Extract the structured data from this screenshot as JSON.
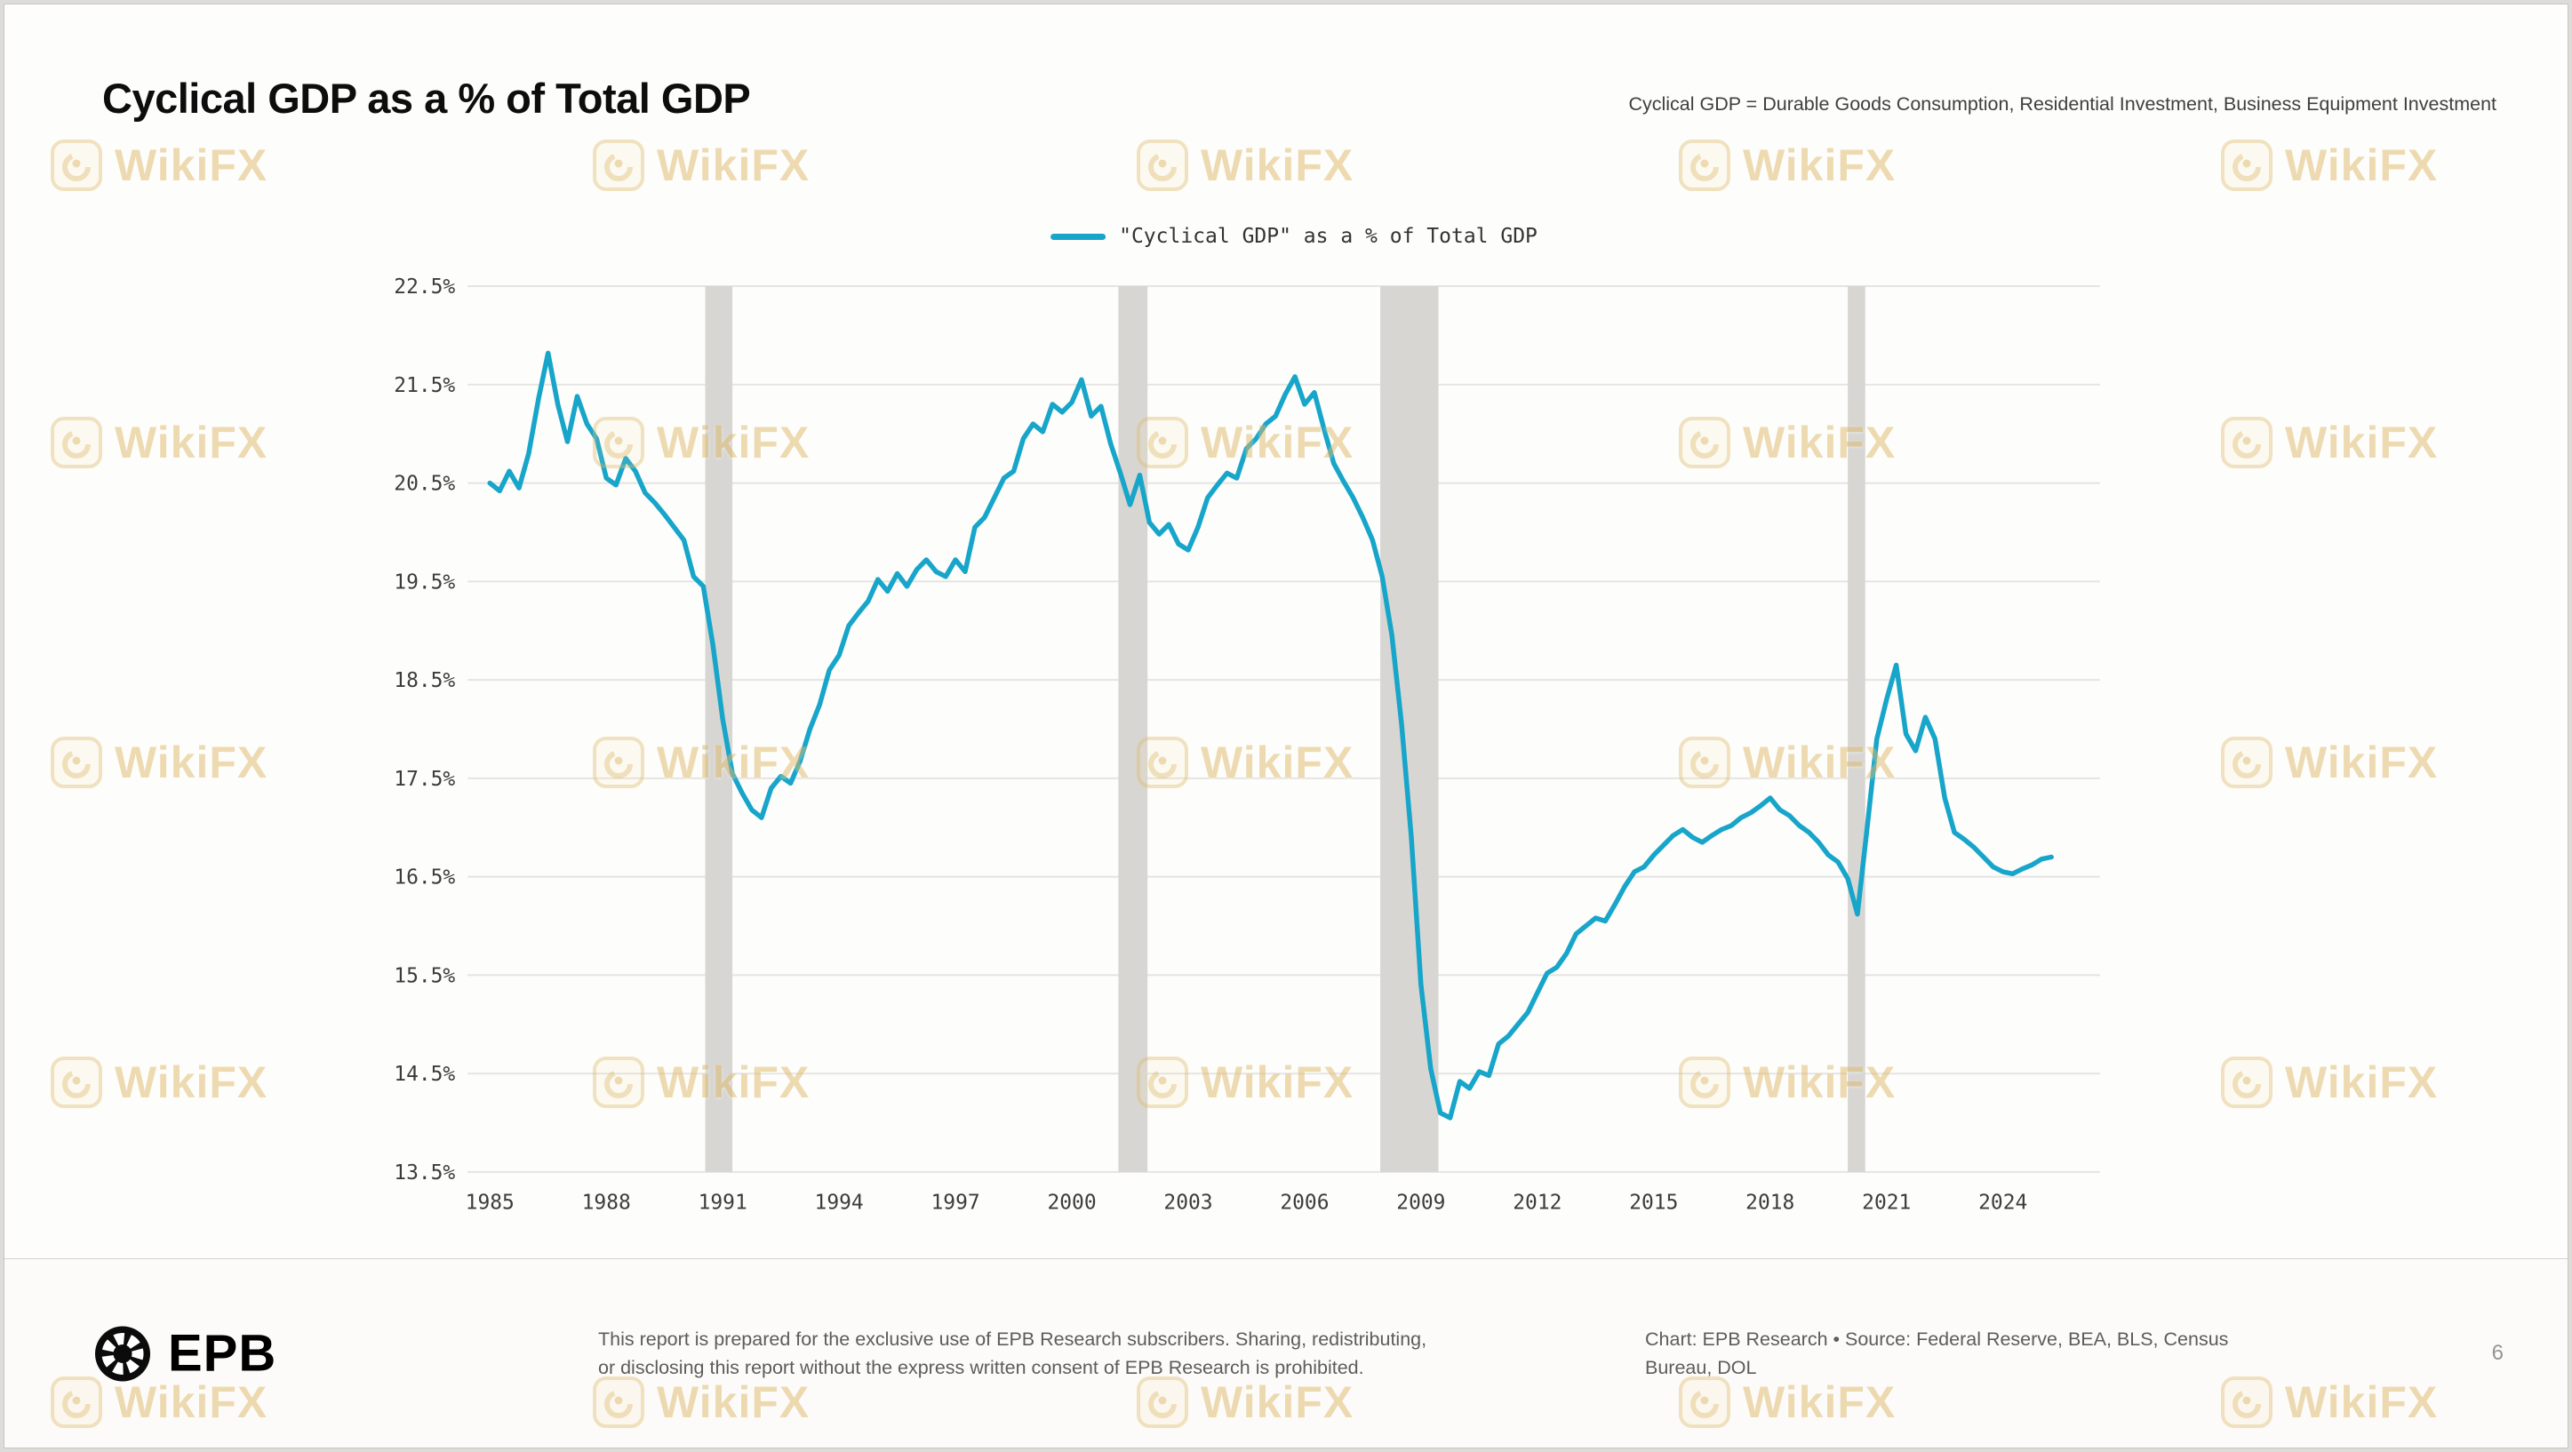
{
  "page": {
    "title": "Cyclical GDP as a % of Total GDP",
    "subtitle_note": "Cyclical GDP = Durable Goods Consumption, Residential Investment, Business Equipment Investment",
    "page_number": "6"
  },
  "legend": {
    "label": "\"Cyclical GDP\" as a % of Total GDP"
  },
  "footer": {
    "brand": "EPB",
    "disclaimer_line1": "This report is prepared for the exclusive use of EPB Research subscribers. Sharing, redistributing,",
    "disclaimer_line2": "or disclosing this report without the express written consent of EPB Research is prohibited.",
    "credits_line1": "Chart: EPB Research  •  Source: Federal Reserve, BEA, BLS, Census",
    "credits_line2": "Bureau, DOL"
  },
  "watermark": {
    "text": "WikiFX",
    "color": "#dfb968"
  },
  "chart_data": {
    "type": "line",
    "title": "Cyclical GDP as a % of Total GDP",
    "xlabel": "",
    "ylabel": "",
    "xlim": [
      1984.7,
      2026.5
    ],
    "ylim": [
      13.5,
      22.5
    ],
    "grid": "horizontal",
    "grid_color": "#e6e4e1",
    "band_color": "#d8d6d3",
    "legend_position": "top-center",
    "yticks": [
      22.5,
      21.5,
      20.5,
      19.5,
      18.5,
      17.5,
      16.5,
      15.5,
      14.5,
      13.5
    ],
    "ytick_labels": [
      "22.5%",
      "21.5%",
      "20.5%",
      "19.5%",
      "18.5%",
      "17.5%",
      "16.5%",
      "15.5%",
      "14.5%",
      "13.5%"
    ],
    "xticks": [
      1985,
      1988,
      1991,
      1994,
      1997,
      2000,
      2003,
      2006,
      2009,
      2012,
      2015,
      2018,
      2021,
      2024
    ],
    "xtick_labels": [
      "1985",
      "1988",
      "1991",
      "1994",
      "1997",
      "2000",
      "2003",
      "2006",
      "2009",
      "2012",
      "2015",
      "2018",
      "2021",
      "2024"
    ],
    "recession_bands": [
      [
        1990.55,
        1991.25
      ],
      [
        2001.2,
        2001.95
      ],
      [
        2007.95,
        2009.45
      ],
      [
        2020.0,
        2020.45
      ]
    ],
    "series": [
      {
        "name": "\"Cyclical GDP\" as a % of Total GDP",
        "color": "#17a5c9",
        "points": [
          [
            1985,
            20.5
          ],
          [
            1985.25,
            20.42
          ],
          [
            1985.5,
            20.62
          ],
          [
            1985.75,
            20.45
          ],
          [
            1986,
            20.8
          ],
          [
            1986.25,
            21.35
          ],
          [
            1986.5,
            21.82
          ],
          [
            1986.75,
            21.3
          ],
          [
            1987,
            20.92
          ],
          [
            1987.25,
            21.38
          ],
          [
            1987.5,
            21.1
          ],
          [
            1987.75,
            20.95
          ],
          [
            1988,
            20.55
          ],
          [
            1988.25,
            20.48
          ],
          [
            1988.5,
            20.75
          ],
          [
            1988.75,
            20.62
          ],
          [
            1989,
            20.4
          ],
          [
            1989.25,
            20.3
          ],
          [
            1989.5,
            20.18
          ],
          [
            1989.75,
            20.05
          ],
          [
            1990,
            19.92
          ],
          [
            1990.25,
            19.55
          ],
          [
            1990.5,
            19.45
          ],
          [
            1990.75,
            18.85
          ],
          [
            1991,
            18.1
          ],
          [
            1991.25,
            17.55
          ],
          [
            1991.5,
            17.35
          ],
          [
            1991.75,
            17.18
          ],
          [
            1992,
            17.1
          ],
          [
            1992.25,
            17.4
          ],
          [
            1992.5,
            17.52
          ],
          [
            1992.75,
            17.45
          ],
          [
            1993,
            17.68
          ],
          [
            1993.25,
            18.0
          ],
          [
            1993.5,
            18.25
          ],
          [
            1993.75,
            18.6
          ],
          [
            1994,
            18.75
          ],
          [
            1994.25,
            19.05
          ],
          [
            1994.5,
            19.18
          ],
          [
            1994.75,
            19.3
          ],
          [
            1995,
            19.52
          ],
          [
            1995.25,
            19.4
          ],
          [
            1995.5,
            19.58
          ],
          [
            1995.75,
            19.45
          ],
          [
            1996,
            19.62
          ],
          [
            1996.25,
            19.72
          ],
          [
            1996.5,
            19.6
          ],
          [
            1996.75,
            19.55
          ],
          [
            1997,
            19.72
          ],
          [
            1997.25,
            19.6
          ],
          [
            1997.5,
            20.05
          ],
          [
            1997.75,
            20.15
          ],
          [
            1998,
            20.35
          ],
          [
            1998.25,
            20.55
          ],
          [
            1998.5,
            20.62
          ],
          [
            1998.75,
            20.95
          ],
          [
            1999,
            21.1
          ],
          [
            1999.25,
            21.02
          ],
          [
            1999.5,
            21.3
          ],
          [
            1999.75,
            21.22
          ],
          [
            2000,
            21.32
          ],
          [
            2000.25,
            21.55
          ],
          [
            2000.5,
            21.18
          ],
          [
            2000.75,
            21.28
          ],
          [
            2001,
            20.9
          ],
          [
            2001.25,
            20.6
          ],
          [
            2001.5,
            20.28
          ],
          [
            2001.75,
            20.58
          ],
          [
            2002,
            20.1
          ],
          [
            2002.25,
            19.98
          ],
          [
            2002.5,
            20.08
          ],
          [
            2002.75,
            19.88
          ],
          [
            2003,
            19.82
          ],
          [
            2003.25,
            20.05
          ],
          [
            2003.5,
            20.35
          ],
          [
            2003.75,
            20.48
          ],
          [
            2004,
            20.6
          ],
          [
            2004.25,
            20.55
          ],
          [
            2004.5,
            20.85
          ],
          [
            2004.75,
            20.95
          ],
          [
            2005,
            21.1
          ],
          [
            2005.25,
            21.18
          ],
          [
            2005.5,
            21.4
          ],
          [
            2005.75,
            21.58
          ],
          [
            2006,
            21.3
          ],
          [
            2006.25,
            21.42
          ],
          [
            2006.5,
            21.05
          ],
          [
            2006.75,
            20.7
          ],
          [
            2007,
            20.52
          ],
          [
            2007.25,
            20.35
          ],
          [
            2007.5,
            20.15
          ],
          [
            2007.75,
            19.92
          ],
          [
            2008,
            19.55
          ],
          [
            2008.25,
            18.95
          ],
          [
            2008.5,
            18.05
          ],
          [
            2008.75,
            16.9
          ],
          [
            2009,
            15.4
          ],
          [
            2009.25,
            14.55
          ],
          [
            2009.5,
            14.1
          ],
          [
            2009.75,
            14.05
          ],
          [
            2010,
            14.42
          ],
          [
            2010.25,
            14.35
          ],
          [
            2010.5,
            14.52
          ],
          [
            2010.75,
            14.48
          ],
          [
            2011,
            14.8
          ],
          [
            2011.25,
            14.88
          ],
          [
            2011.5,
            15.0
          ],
          [
            2011.75,
            15.12
          ],
          [
            2012,
            15.32
          ],
          [
            2012.25,
            15.52
          ],
          [
            2012.5,
            15.58
          ],
          [
            2012.75,
            15.72
          ],
          [
            2013,
            15.92
          ],
          [
            2013.25,
            16.0
          ],
          [
            2013.5,
            16.08
          ],
          [
            2013.75,
            16.05
          ],
          [
            2014,
            16.22
          ],
          [
            2014.25,
            16.4
          ],
          [
            2014.5,
            16.55
          ],
          [
            2014.75,
            16.6
          ],
          [
            2015,
            16.72
          ],
          [
            2015.25,
            16.82
          ],
          [
            2015.5,
            16.92
          ],
          [
            2015.75,
            16.98
          ],
          [
            2016,
            16.9
          ],
          [
            2016.25,
            16.85
          ],
          [
            2016.5,
            16.92
          ],
          [
            2016.75,
            16.98
          ],
          [
            2017,
            17.02
          ],
          [
            2017.25,
            17.1
          ],
          [
            2017.5,
            17.15
          ],
          [
            2017.75,
            17.22
          ],
          [
            2018,
            17.3
          ],
          [
            2018.25,
            17.18
          ],
          [
            2018.5,
            17.12
          ],
          [
            2018.75,
            17.02
          ],
          [
            2019,
            16.95
          ],
          [
            2019.25,
            16.85
          ],
          [
            2019.5,
            16.72
          ],
          [
            2019.75,
            16.65
          ],
          [
            2020,
            16.48
          ],
          [
            2020.25,
            16.12
          ],
          [
            2020.5,
            17.0
          ],
          [
            2020.75,
            17.9
          ],
          [
            2021,
            18.3
          ],
          [
            2021.25,
            18.65
          ],
          [
            2021.5,
            17.95
          ],
          [
            2021.75,
            17.78
          ],
          [
            2022,
            18.12
          ],
          [
            2022.25,
            17.9
          ],
          [
            2022.5,
            17.3
          ],
          [
            2022.75,
            16.95
          ],
          [
            2023,
            16.88
          ],
          [
            2023.25,
            16.8
          ],
          [
            2023.5,
            16.7
          ],
          [
            2023.75,
            16.6
          ],
          [
            2024,
            16.55
          ],
          [
            2024.25,
            16.53
          ],
          [
            2024.5,
            16.58
          ],
          [
            2024.75,
            16.62
          ],
          [
            2025,
            16.68
          ],
          [
            2025.25,
            16.7
          ]
        ]
      }
    ]
  }
}
